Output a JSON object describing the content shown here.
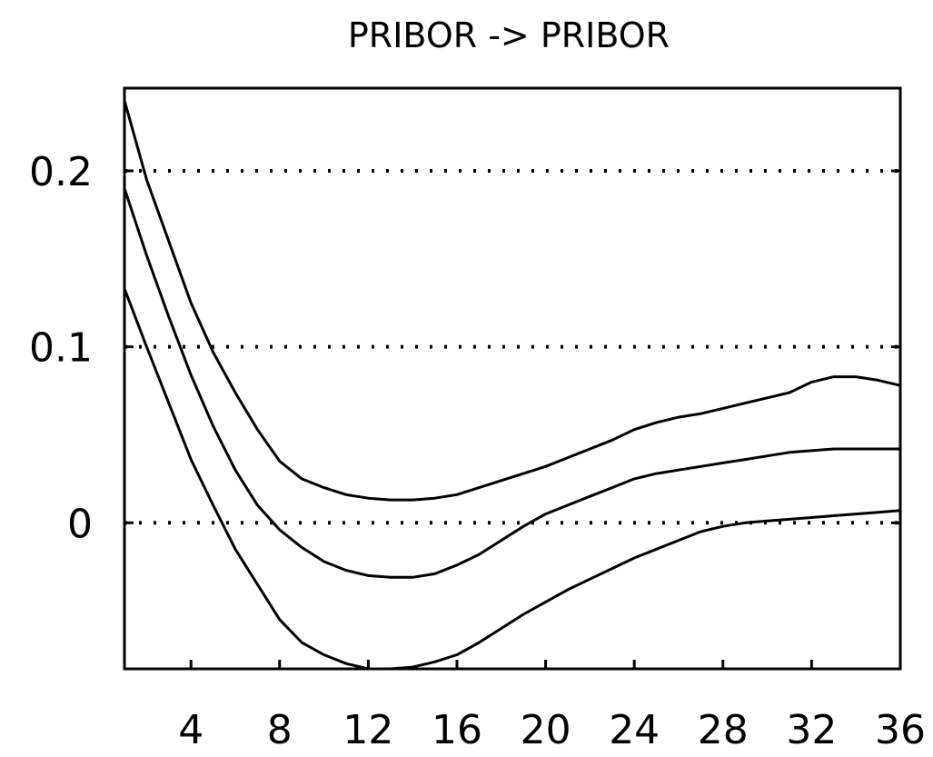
{
  "chart_data": {
    "type": "line",
    "title": "PRIBOR -> PRIBOR",
    "xlabel": "",
    "ylabel": "",
    "xlim": [
      1,
      36
    ],
    "ylim": [
      -0.083,
      0.247
    ],
    "x_ticks": [
      4,
      8,
      12,
      16,
      20,
      24,
      28,
      32,
      36
    ],
    "y_ticks": [
      0,
      0.1,
      0.2
    ],
    "x_tick_labels": [
      "4",
      "8",
      "12",
      "16",
      "20",
      "24",
      "28",
      "32",
      "36"
    ],
    "y_tick_labels": [
      "0",
      "0.1",
      "0.2"
    ],
    "grid": "dotted horizontal lines at y ticks",
    "colors": {
      "line": "#000000",
      "grid": "#000000",
      "background": "#ffffff"
    },
    "x": [
      1,
      2,
      3,
      4,
      5,
      6,
      7,
      8,
      9,
      10,
      11,
      12,
      13,
      14,
      15,
      16,
      17,
      18,
      19,
      20,
      21,
      22,
      23,
      24,
      25,
      26,
      27,
      28,
      29,
      30,
      31,
      32,
      33,
      34,
      35,
      36
    ],
    "series": [
      {
        "values": [
          0.24,
          0.195,
          0.16,
          0.125,
          0.097,
          0.074,
          0.053,
          0.035,
          0.025,
          0.02,
          0.016,
          0.014,
          0.013,
          0.013,
          0.014,
          0.016,
          0.02,
          0.024,
          0.028,
          0.032,
          0.037,
          0.042,
          0.047,
          0.053,
          0.057,
          0.06,
          0.062,
          0.065,
          0.068,
          0.071,
          0.074,
          0.08,
          0.083,
          0.083,
          0.081,
          0.078
        ]
      },
      {
        "values": [
          0.19,
          0.152,
          0.117,
          0.084,
          0.055,
          0.03,
          0.01,
          -0.004,
          -0.014,
          -0.022,
          -0.027,
          -0.03,
          -0.031,
          -0.031,
          -0.029,
          -0.024,
          -0.018,
          -0.01,
          -0.002,
          0.005,
          0.01,
          0.015,
          0.02,
          0.025,
          0.028,
          0.03,
          0.032,
          0.034,
          0.036,
          0.038,
          0.04,
          0.041,
          0.042,
          0.042,
          0.042,
          0.042
        ]
      },
      {
        "values": [
          0.133,
          0.1,
          0.068,
          0.036,
          0.01,
          -0.015,
          -0.035,
          -0.055,
          -0.068,
          -0.075,
          -0.08,
          -0.083,
          -0.083,
          -0.082,
          -0.079,
          -0.075,
          -0.068,
          -0.06,
          -0.052,
          -0.045,
          -0.038,
          -0.032,
          -0.026,
          -0.02,
          -0.015,
          -0.01,
          -0.005,
          -0.002,
          0.0,
          0.001,
          0.002,
          0.003,
          0.004,
          0.005,
          0.006,
          0.007
        ]
      }
    ]
  }
}
